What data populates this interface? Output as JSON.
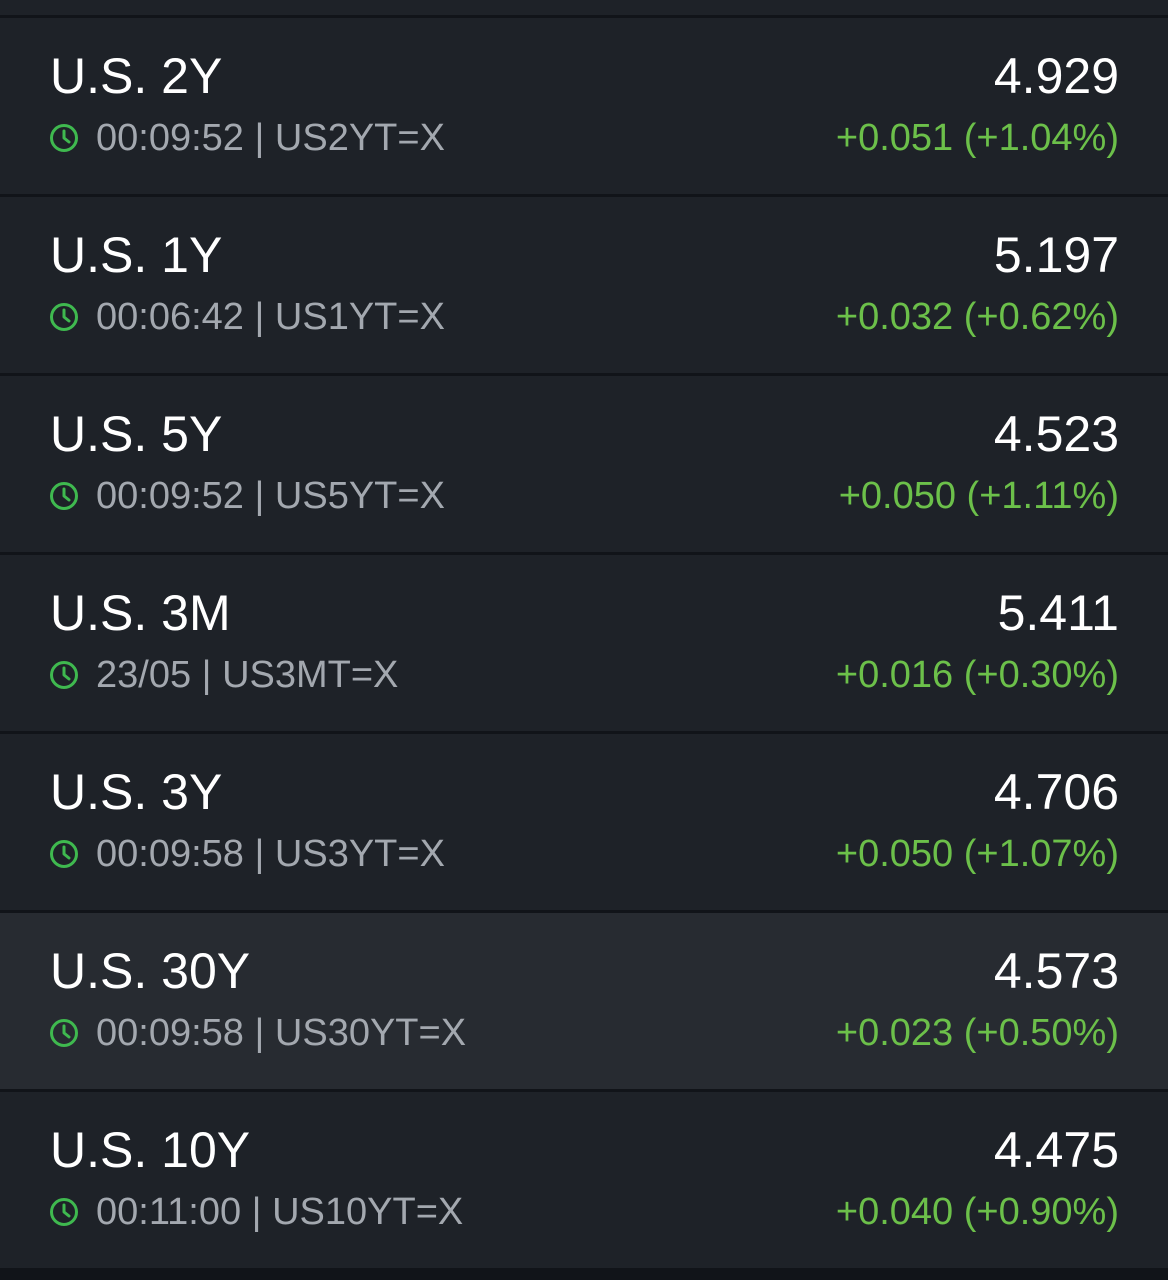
{
  "colors": {
    "positive": "#6cc04a",
    "clock_icon": "#3fb94f"
  },
  "rows": [
    {
      "name": "U.S. 2Y",
      "time": "00:09:52",
      "symbol": "US2YT=X",
      "meta": "00:09:52 | US2YT=X",
      "price": "4.929",
      "change": "+0.051 (+1.04%)",
      "icon": "clock-icon"
    },
    {
      "name": "U.S. 1Y",
      "time": "00:06:42",
      "symbol": "US1YT=X",
      "meta": "00:06:42 | US1YT=X",
      "price": "5.197",
      "change": "+0.032 (+0.62%)",
      "icon": "clock-icon"
    },
    {
      "name": "U.S. 5Y",
      "time": "00:09:52",
      "symbol": "US5YT=X",
      "meta": "00:09:52 | US5YT=X",
      "price": "4.523",
      "change": "+0.050 (+1.11%)",
      "icon": "clock-icon"
    },
    {
      "name": "U.S. 3M",
      "time": "23/05",
      "symbol": "US3MT=X",
      "meta": "23/05 | US3MT=X",
      "price": "5.411",
      "change": "+0.016 (+0.30%)",
      "icon": "clock-icon"
    },
    {
      "name": "U.S. 3Y",
      "time": "00:09:58",
      "symbol": "US3YT=X",
      "meta": "00:09:58 | US3YT=X",
      "price": "4.706",
      "change": "+0.050 (+1.07%)",
      "icon": "clock-icon"
    },
    {
      "name": "U.S. 30Y",
      "time": "00:09:58",
      "symbol": "US30YT=X",
      "meta": "00:09:58 | US30YT=X",
      "price": "4.573",
      "change": "+0.023 (+0.50%)",
      "icon": "clock-icon"
    },
    {
      "name": "U.S. 10Y",
      "time": "00:11:00",
      "symbol": "US10YT=X",
      "meta": "00:11:00 | US10YT=X",
      "price": "4.475",
      "change": "+0.040 (+0.90%)",
      "icon": "clock-icon"
    }
  ]
}
